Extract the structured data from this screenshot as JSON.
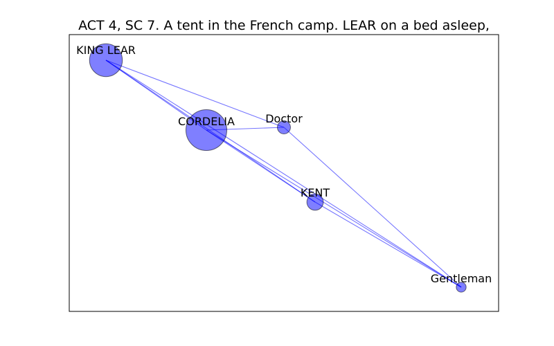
{
  "title": "ACT 4, SC 7. A tent in the French camp. LEAR on a bed asleep,",
  "colors": {
    "node": "#0000ff",
    "edge": "#0000ff",
    "frame": "#000000"
  },
  "nodes": [
    {
      "id": "lear",
      "label": "KING LEAR",
      "weight": 2.2
    },
    {
      "id": "cordelia",
      "label": "CORDELIA",
      "weight": 3.4
    },
    {
      "id": "doctor",
      "label": "Doctor",
      "weight": 0.35
    },
    {
      "id": "kent",
      "label": "KENT",
      "weight": 0.55
    },
    {
      "id": "gentleman",
      "label": "Gentleman",
      "weight": 0.2
    }
  ],
  "edges": [
    {
      "source": "lear",
      "target": "cordelia"
    },
    {
      "source": "lear",
      "target": "doctor"
    },
    {
      "source": "lear",
      "target": "kent"
    },
    {
      "source": "lear",
      "target": "gentleman"
    },
    {
      "source": "cordelia",
      "target": "doctor"
    },
    {
      "source": "cordelia",
      "target": "kent"
    },
    {
      "source": "cordelia",
      "target": "gentleman"
    },
    {
      "source": "doctor",
      "target": "gentleman"
    },
    {
      "source": "kent",
      "target": "gentleman"
    }
  ]
}
